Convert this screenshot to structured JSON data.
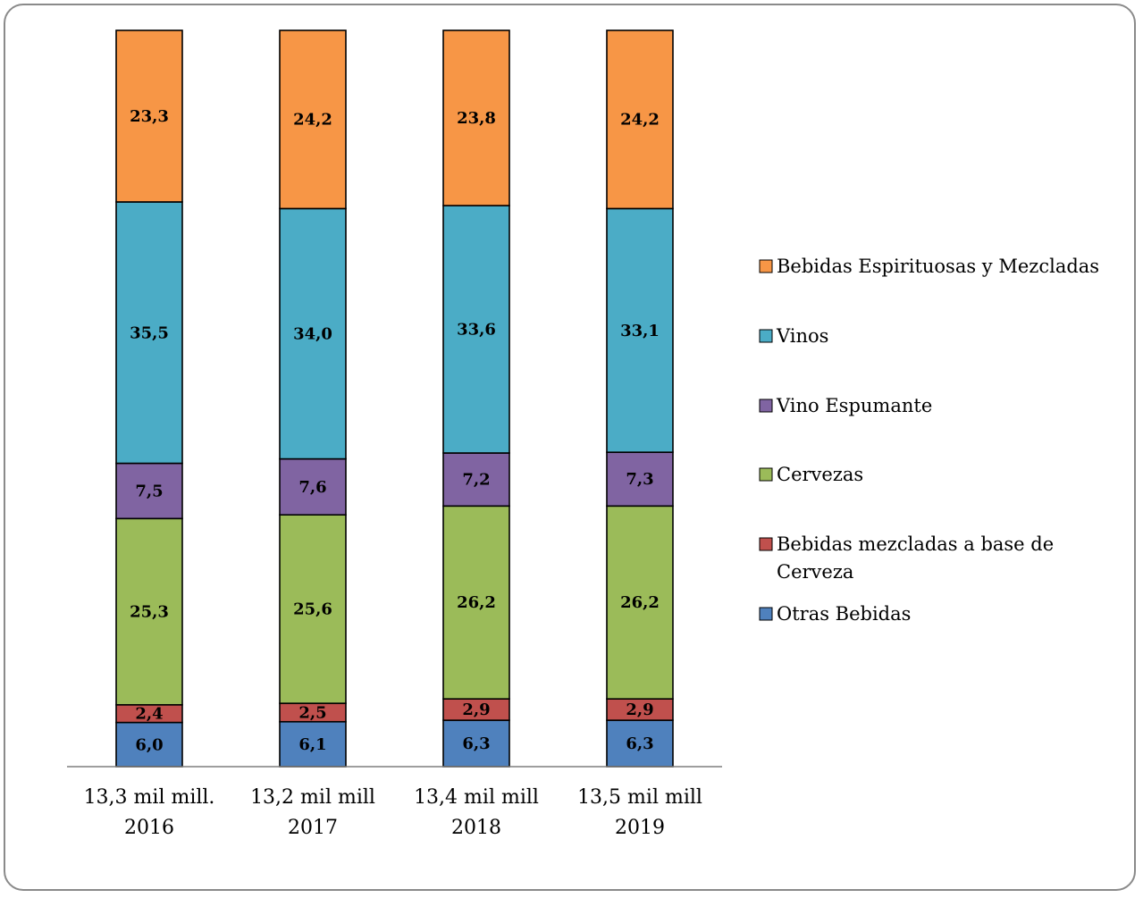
{
  "chart_data": {
    "type": "bar",
    "stacked": true,
    "percent": true,
    "categories": [
      {
        "line1": "13,3 mil mill.",
        "line2": "2016"
      },
      {
        "line1": "13,2 mil mill",
        "line2": "2017"
      },
      {
        "line1": "13,4 mil mill",
        "line2": "2018"
      },
      {
        "line1": "13,5 mil mill",
        "line2": "2019"
      }
    ],
    "series": [
      {
        "name": "Otras Bebidas",
        "color": "#4f81bd",
        "values": [
          6.0,
          6.1,
          6.3,
          6.3
        ],
        "labels": [
          "6,0",
          "6,1",
          "6,3",
          "6,3"
        ]
      },
      {
        "name": "Bebidas mezcladas a base de Cerveza",
        "legend_lines": [
          "Bebidas mezcladas a base de",
          "Cerveza"
        ],
        "color": "#c0504d",
        "values": [
          2.4,
          2.5,
          2.9,
          2.9
        ],
        "labels": [
          "2,4",
          "2,5",
          "2,9",
          "2,9"
        ]
      },
      {
        "name": "Cervezas",
        "color": "#9bbb59",
        "values": [
          25.3,
          25.6,
          26.2,
          26.2
        ],
        "labels": [
          "25,3",
          "25,6",
          "26,2",
          "26,2"
        ]
      },
      {
        "name": "Vino Espumante",
        "color": "#8064a2",
        "values": [
          7.5,
          7.6,
          7.2,
          7.3
        ],
        "labels": [
          "7,5",
          "7,6",
          "7,2",
          "7,3"
        ]
      },
      {
        "name": "Vinos",
        "color": "#4bacc6",
        "values": [
          35.5,
          34.0,
          33.6,
          33.1
        ],
        "labels": [
          "35,5",
          "34,0",
          "33,6",
          "33,1"
        ]
      },
      {
        "name": "Bebidas Espirituosas y Mezcladas",
        "color": "#f79646",
        "values": [
          23.3,
          24.2,
          23.8,
          24.2
        ],
        "labels": [
          "23,3",
          "24,2",
          "23,8",
          "24,2"
        ]
      }
    ],
    "legend_order": [
      "Bebidas Espirituosas y Mezcladas",
      "Vinos",
      "Vino Espumante",
      "Cervezas",
      "Bebidas mezcladas a base de Cerveza",
      "Otras Bebidas"
    ],
    "legend_position": "right",
    "grid": false
  }
}
